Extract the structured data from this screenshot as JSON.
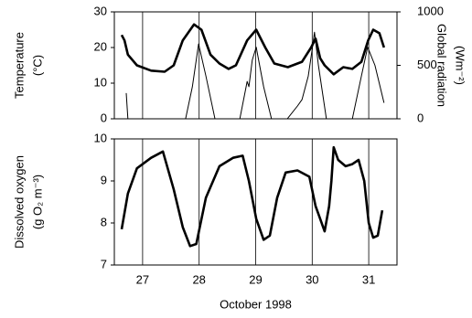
{
  "chart_data": [
    {
      "type": "line",
      "ylabel": [
        "Temperature",
        "(°C)"
      ],
      "y2label": [
        "Global radiation",
        "(Wm⁻²)"
      ],
      "xlim": [
        26.5,
        31.5
      ],
      "xticks": [
        27,
        28,
        29,
        30,
        31
      ],
      "ylim": [
        0,
        30
      ],
      "yticks": [
        0,
        10,
        20,
        30
      ],
      "y2lim": [
        0,
        1000
      ],
      "y2ticks": [
        0,
        500,
        1000
      ],
      "series": [
        {
          "name": "Temperature",
          "color": "#000000",
          "x": [
            26.63,
            26.68,
            26.74,
            26.9,
            27.15,
            27.39,
            27.55,
            27.71,
            27.91,
            28.04,
            28.2,
            28.36,
            28.52,
            28.65,
            28.85,
            29.01,
            29.17,
            29.33,
            29.57,
            29.82,
            29.98,
            30.06,
            30.14,
            30.22,
            30.38,
            30.55,
            30.71,
            30.87,
            30.99,
            31.08,
            31.19,
            31.27
          ],
          "values": [
            23.5,
            22,
            18,
            15,
            13.5,
            13.2,
            15,
            22,
            26.5,
            25,
            18,
            15.5,
            14,
            15,
            22,
            25,
            20,
            15.5,
            14.5,
            16,
            20,
            22.5,
            17,
            15,
            12.5,
            14.5,
            14,
            16,
            22,
            25,
            24,
            20
          ]
        },
        {
          "name": "Global radiation",
          "color": "#000000",
          "axis": "y2",
          "x": [
            26.71,
            26.74,
            27.76,
            27.88,
            27.99,
            28.12,
            28.28,
            28.72,
            28.85,
            28.88,
            28.94,
            29.01,
            29.14,
            29.28,
            29.56,
            29.74,
            29.82,
            29.93,
            30.0,
            30.04,
            30.11,
            30.25,
            30.71,
            30.87,
            30.98,
            31.11,
            31.27
          ],
          "values": [
            240,
            0,
            0,
            300,
            700,
            400,
            0,
            0,
            350,
            300,
            550,
            670,
            300,
            0,
            0,
            120,
            180,
            400,
            650,
            810,
            500,
            0,
            0,
            400,
            670,
            500,
            150
          ]
        }
      ]
    },
    {
      "type": "line",
      "ylabel": [
        "Dissolved oxygen",
        "(g O₂ m⁻³)"
      ],
      "xlabel": "October 1998",
      "xlim": [
        26.5,
        31.5
      ],
      "xticks": [
        27,
        28,
        29,
        30,
        31
      ],
      "ylim": [
        7,
        10
      ],
      "yticks": [
        7,
        8,
        9,
        10
      ],
      "series": [
        {
          "name": "Dissolved oxygen",
          "color": "#000000",
          "x": [
            26.63,
            26.74,
            26.9,
            27.15,
            27.36,
            27.55,
            27.71,
            27.84,
            27.95,
            28.12,
            28.36,
            28.6,
            28.77,
            28.88,
            29.01,
            29.14,
            29.25,
            29.38,
            29.53,
            29.74,
            29.95,
            30.06,
            30.14,
            30.22,
            30.3,
            30.34,
            30.38,
            30.46,
            30.59,
            30.71,
            30.82,
            30.92,
            31.0,
            31.08,
            31.16,
            31.24
          ],
          "values": [
            7.85,
            8.7,
            9.3,
            9.55,
            9.7,
            8.8,
            7.9,
            7.45,
            7.5,
            8.6,
            9.35,
            9.55,
            9.6,
            9.0,
            8.1,
            7.6,
            7.7,
            8.6,
            9.2,
            9.25,
            9.1,
            8.4,
            8.1,
            7.8,
            8.4,
            9.0,
            9.8,
            9.5,
            9.35,
            9.4,
            9.5,
            9.0,
            8.0,
            7.65,
            7.7,
            8.3
          ]
        }
      ]
    }
  ]
}
